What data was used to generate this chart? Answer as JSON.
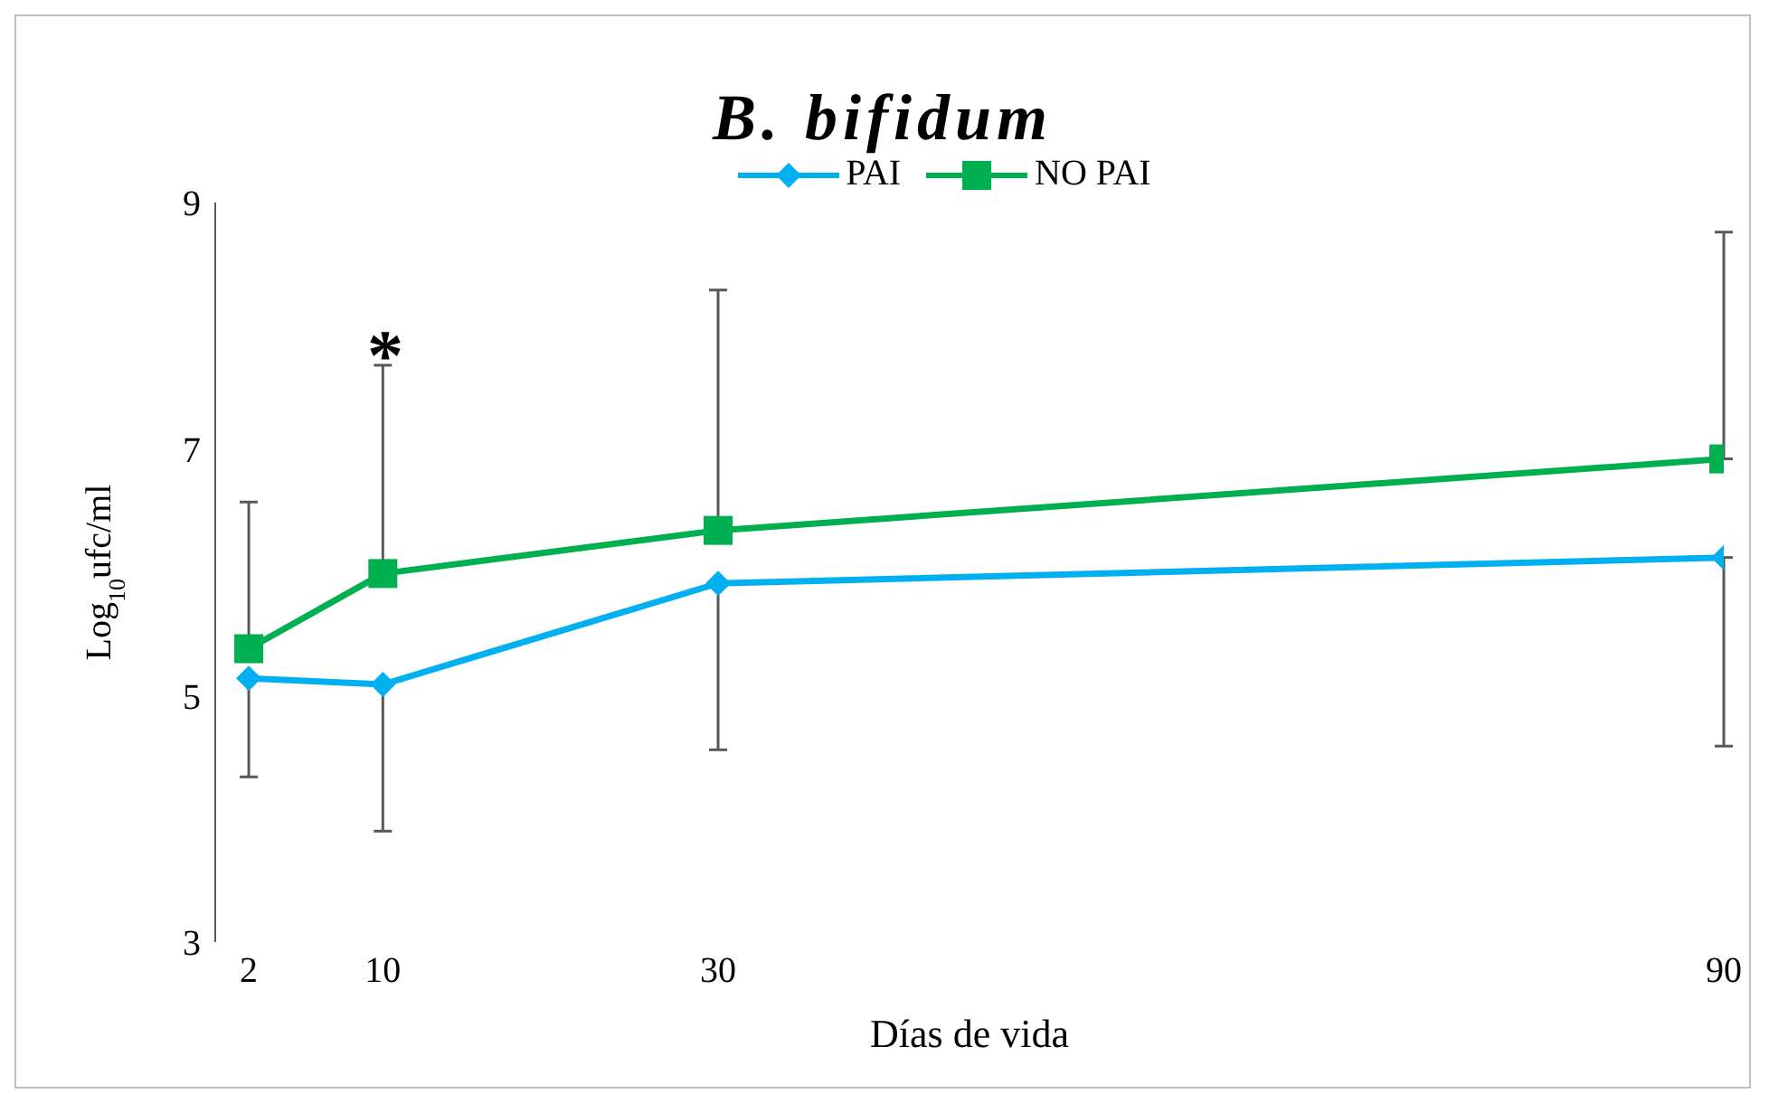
{
  "chart_data": {
    "type": "line",
    "title": "B. bifidum",
    "xlabel": "Días de vida",
    "ylabel": "Log$_{10}$ufc/ml",
    "x": [
      2,
      10,
      30,
      90
    ],
    "xlim": [
      0,
      90
    ],
    "xticks": [
      2,
      10,
      30,
      90
    ],
    "ylim": [
      3,
      9
    ],
    "yticks": [
      3,
      5,
      7,
      9
    ],
    "grid": false,
    "legend": "top",
    "series": [
      {
        "name": "PAI",
        "color": "#00b0f0",
        "marker": "diamond",
        "values": [
          5.14,
          5.09,
          5.91,
          6.12
        ],
        "errors": [
          [
            4.34,
            5.14
          ],
          [
            3.9,
            5.09
          ],
          [
            4.56,
            5.91
          ],
          [
            4.59,
            6.12
          ]
        ]
      },
      {
        "name": "NO PAI",
        "color": "#00b050",
        "marker": "square",
        "values": [
          5.38,
          5.99,
          6.34,
          6.92
        ],
        "errors": [
          [
            5.38,
            6.57
          ],
          [
            5.99,
            7.68
          ],
          [
            6.34,
            8.29
          ],
          [
            6.92,
            8.76
          ]
        ]
      }
    ],
    "annotations": [
      "*"
    ]
  }
}
